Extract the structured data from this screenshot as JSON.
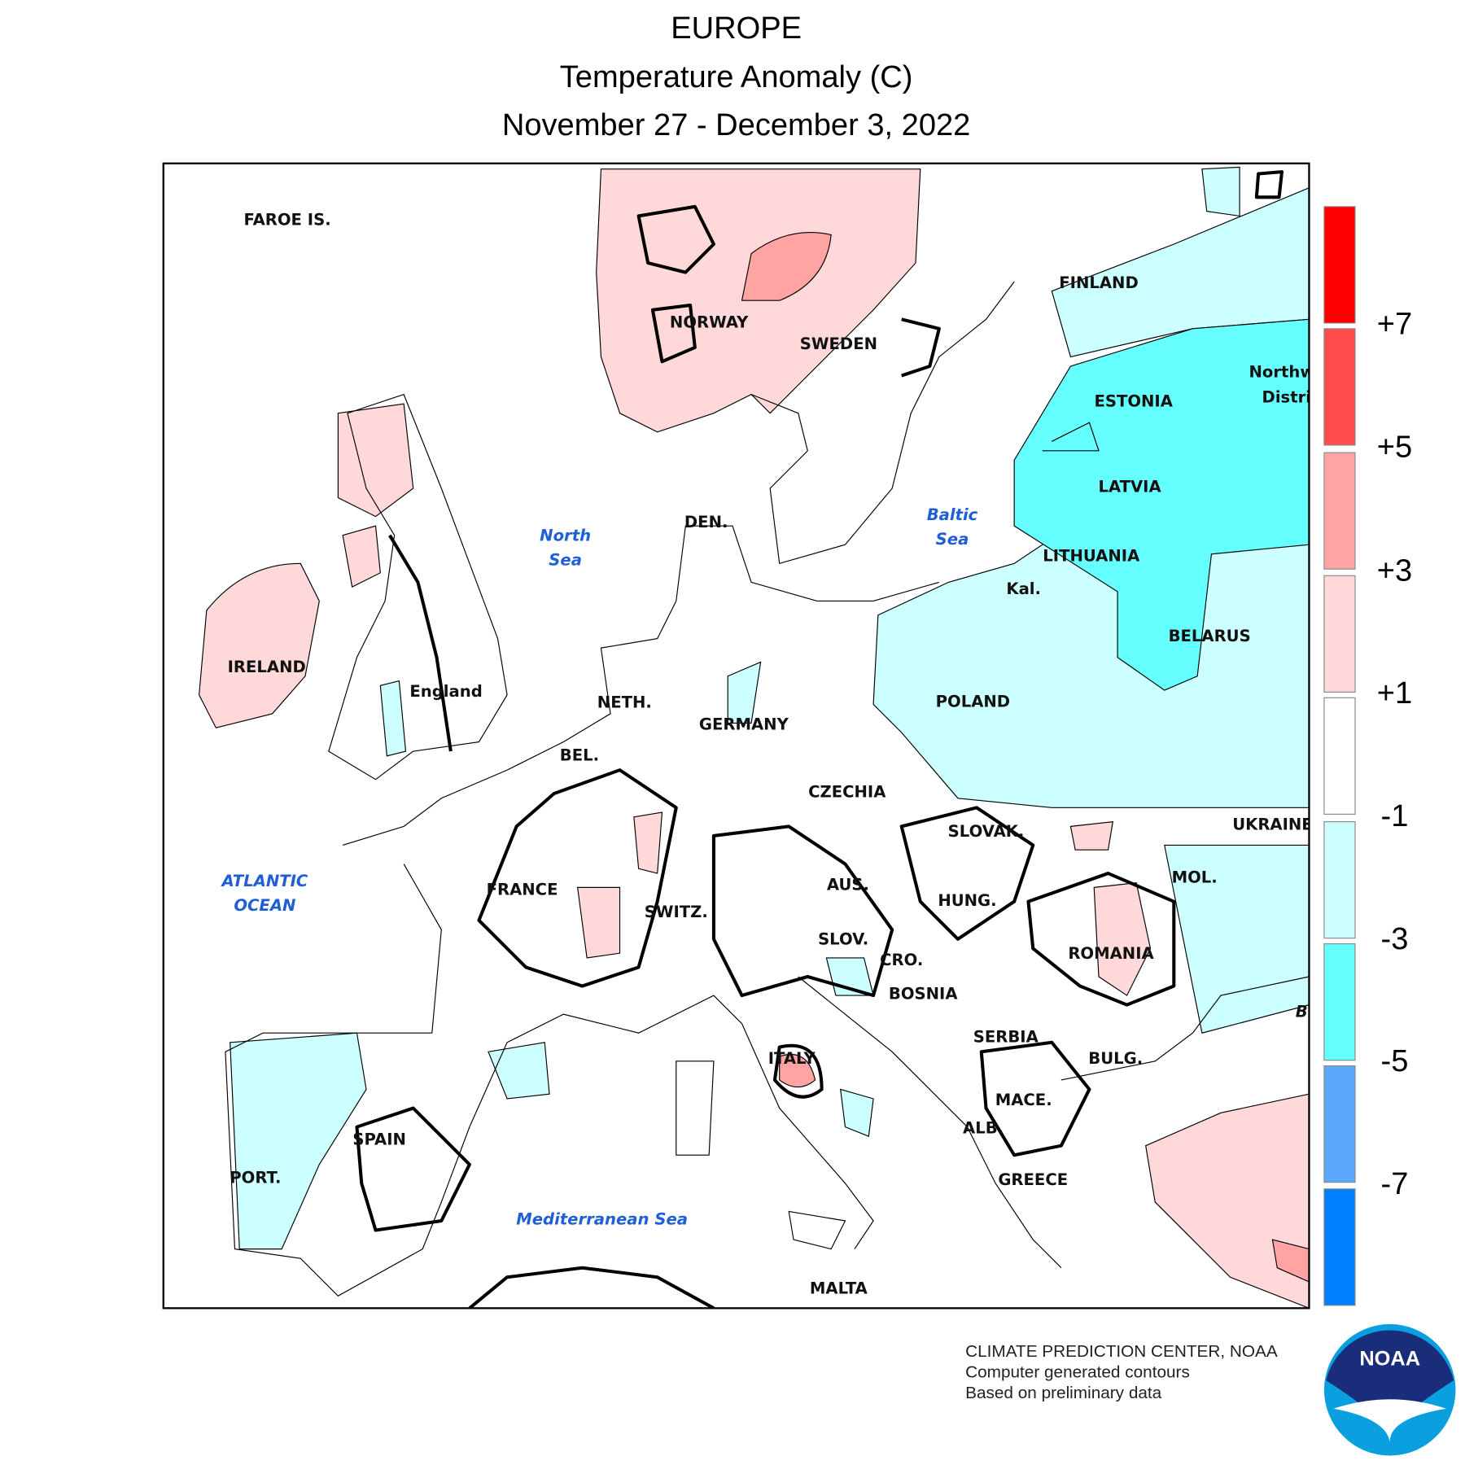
{
  "header": {
    "title": "EUROPE",
    "subtitle": "Temperature Anomaly (C)",
    "dates": "November 27 - December 3, 2022"
  },
  "legend": {
    "colors": [
      "#ff0000",
      "#ff4d4d",
      "#ffa3a3",
      "#ffd9d9",
      "#ffffff",
      "#ccffff",
      "#66ffff",
      "#5ca8ff",
      "#0080ff"
    ],
    "ticks": [
      "+7",
      "+5",
      "+3",
      "+1",
      "-1",
      "-3",
      "-5",
      "-7"
    ]
  },
  "places": [
    "FAROE IS.",
    "NORWAY",
    "SWEDEN",
    "FINLAND",
    "ESTONIA",
    "LATVIA",
    "LITHUANIA",
    "Kal.",
    "BELARUS",
    "POLAND",
    "UKRAINE",
    "MOL.",
    "ROMANIA",
    "IRELAND",
    "England",
    "DEN.",
    "NETH.",
    "GERMANY",
    "BEL.",
    "CZECHIA",
    "SLOVAK.",
    "FRANCE",
    "SWITZ.",
    "AUS.",
    "HUNG.",
    "SLOV.",
    "CRO.",
    "BOSNIA",
    "SERBIA",
    "BULG.",
    "ITALY",
    "MACE.",
    "ALB.",
    "SPAIN",
    "PORT.",
    "GREECE",
    "MALTA",
    "Northw",
    "Distri",
    "B"
  ],
  "seas": [
    [
      "North",
      "Sea"
    ],
    [
      "Baltic",
      "Sea"
    ],
    [
      "ATLANTIC",
      "OCEAN"
    ],
    [
      "Mediterranean Sea"
    ]
  ],
  "credits": [
    "CLIMATE PREDICTION CENTER, NOAA",
    "Computer generated contours",
    "Based on preliminary data"
  ],
  "logo": "NOAA"
}
